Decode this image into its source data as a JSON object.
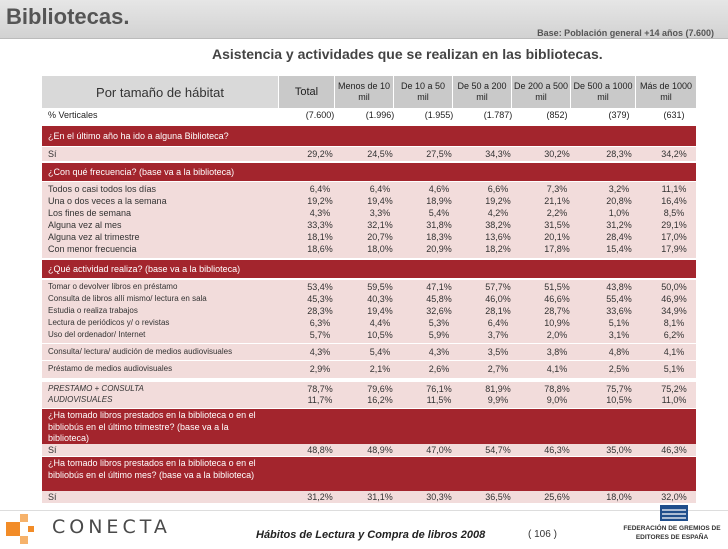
{
  "header": {
    "title": "Bibliotecas.",
    "base": "Base: Población general +14 años (7.600)",
    "subtitle": "Asistencia y actividades que se realizan en las bibliotecas."
  },
  "columns": {
    "label": "Por tamaño de hábitat",
    "items": [
      "Total",
      "Menos de 10 mil",
      "De 10 a 50 mil",
      "De 50 a 200 mil",
      "De 200 a 500 mil",
      "De 500 a 1000 mil",
      "Más de 1000 mil"
    ]
  },
  "rows": {
    "verticales": {
      "label": "% Verticales",
      "values": [
        "(7.600)",
        "(1.996)",
        "(1.955)",
        "(1.787)",
        "(852)",
        "(379)",
        "(631)"
      ]
    },
    "sec1": "¿En el último año ha ido a alguna Biblioteca?",
    "si1": {
      "label": "Sí",
      "values": [
        "29,2%",
        "24,5%",
        "27,5%",
        "34,3%",
        "30,2%",
        "28,3%",
        "34,2%"
      ]
    },
    "sec2": "¿Con qué frecuencia? (base va a la biblioteca)",
    "freq": [
      {
        "label": "Todos o casi todos los días",
        "values": [
          "6,4%",
          "6,4%",
          "4,6%",
          "6,6%",
          "7,3%",
          "3,2%",
          "11,1%"
        ]
      },
      {
        "label": "Una o dos veces a la semana",
        "values": [
          "19,2%",
          "19,4%",
          "18,9%",
          "19,2%",
          "21,1%",
          "20,8%",
          "16,4%"
        ]
      },
      {
        "label": "Los fines de semana",
        "values": [
          "4,3%",
          "3,3%",
          "5,4%",
          "4,2%",
          "2,2%",
          "1,0%",
          "8,5%"
        ]
      },
      {
        "label": "Alguna vez al mes",
        "values": [
          "33,3%",
          "32,1%",
          "31,8%",
          "38,2%",
          "31,5%",
          "31,2%",
          "29,1%"
        ]
      },
      {
        "label": "Alguna vez al trimestre",
        "values": [
          "18,1%",
          "20,7%",
          "18,3%",
          "13,6%",
          "20,1%",
          "28,4%",
          "17,0%"
        ]
      },
      {
        "label": "Con menor frecuencia",
        "values": [
          "18,6%",
          "18,0%",
          "20,9%",
          "18,2%",
          "17,8%",
          "15,4%",
          "17,9%"
        ]
      }
    ],
    "sec3": "¿Qué actividad realiza? (base va a la biblioteca)",
    "act": [
      {
        "label": "Tomar o devolver libros en préstamo",
        "values": [
          "53,4%",
          "59,5%",
          "47,1%",
          "57,7%",
          "51,5%",
          "43,8%",
          "50,0%"
        ]
      },
      {
        "label": "Consulta de libros allí mismo/ lectura en sala",
        "values": [
          "45,3%",
          "40,3%",
          "45,8%",
          "46,0%",
          "46,6%",
          "55,4%",
          "46,9%"
        ]
      },
      {
        "label": "Estudia o realiza trabajos",
        "values": [
          "28,3%",
          "19,4%",
          "32,6%",
          "28,1%",
          "28,7%",
          "33,6%",
          "34,9%"
        ]
      },
      {
        "label": "Lectura de periódicos y/ o revistas",
        "values": [
          "6,3%",
          "4,4%",
          "5,3%",
          "6,4%",
          "10,9%",
          "5,1%",
          "8,1%"
        ]
      },
      {
        "label": "Uso del ordenador/ Internet",
        "values": [
          "5,7%",
          "10,5%",
          "5,9%",
          "3,7%",
          "2,0%",
          "3,1%",
          "6,2%"
        ]
      },
      {
        "label": "Consulta/ lectura/ audición de medios audiovisuales",
        "values": [
          "4,3%",
          "5,4%",
          "4,3%",
          "3,5%",
          "3,8%",
          "4,8%",
          "4,1%"
        ]
      },
      {
        "label": "Préstamo de medios audiovisuales",
        "values": [
          "2,9%",
          "2,1%",
          "2,6%",
          "2,7%",
          "4,1%",
          "2,5%",
          "5,1%"
        ]
      }
    ],
    "prestamo": {
      "label": "PRESTAMO + CONSULTA",
      "values": [
        "78,7%",
        "79,6%",
        "76,1%",
        "81,9%",
        "78,8%",
        "75,7%",
        "75,2%"
      ]
    },
    "audiovisuales": {
      "label": "AUDIOVISUALES",
      "values": [
        "11,7%",
        "16,2%",
        "11,5%",
        "9,9%",
        "9,0%",
        "10,5%",
        "11,0%"
      ]
    },
    "sec4": "¿Ha tomado libros prestados en la biblioteca o en el bibliobús en el último trimestre? (base va a la biblioteca)",
    "si4": {
      "label": "Sí",
      "values": [
        "48,8%",
        "48,9%",
        "47,0%",
        "54,7%",
        "46,3%",
        "35,0%",
        "46,3%"
      ]
    },
    "sec5": "¿Ha tomado libros prestados en la biblioteca o en el bibliobús en el último mes? (base va a la biblioteca)",
    "si5": {
      "label": "Sí",
      "values": [
        "31,2%",
        "31,1%",
        "30,3%",
        "36,5%",
        "25,6%",
        "18,0%",
        "32,0%"
      ]
    }
  },
  "footer": {
    "brand": "CONECTA",
    "title": "Hábitos de Lectura y Compra de libros 2008",
    "page": "( 106 )",
    "federacion": "FEDERACIÓN DE GREMIOS DE EDITORES DE ESPAÑA"
  },
  "colors": {
    "accent": "#a3252d",
    "pink": "#f2dcdb",
    "header_gray": "#c9c9c9"
  }
}
